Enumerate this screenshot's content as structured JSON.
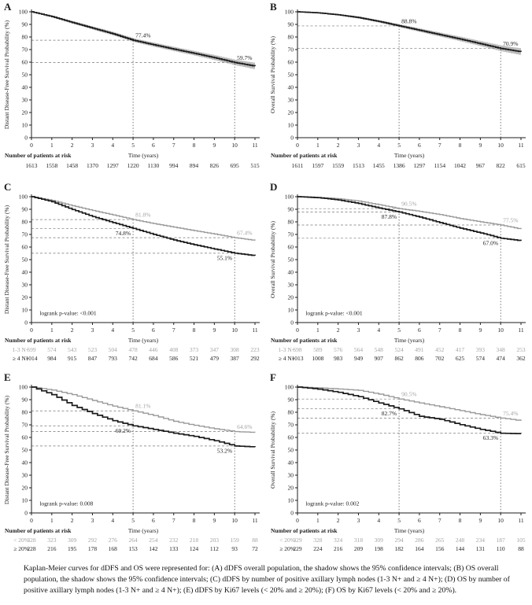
{
  "figure": {
    "caption": "Kaplan-Meier curves for dDFS and OS were represented for: (A) dDFS overall population, the shadow shows the 95% confidence intervals; (B) OS overall population, the shadow shows the 95% confidence intervals; (C) dDFS by number of positive axillary lymph nodes (1-3 N+ and ≥ 4 N+); (D) OS by number of positive axillary lymph nodes (1-3 N+ and ≥ 4 N+); (E) dDFS by Ki67 levels (< 20% and ≥ 20%); (F) OS by Ki67 levels (< 20% and ≥ 20%).",
    "risk_header": "Number of patients at risk",
    "time_axis_label": "Time (years)",
    "colors": {
      "black_series": "#1c1c1c",
      "gray_series": "#9a9a9a",
      "ci_band": "#bdbdbd",
      "ref_line": "#777777",
      "gray_text": "#a3a3a3"
    }
  },
  "chart_data": [
    {
      "letter": "A",
      "type": "line",
      "ylabel": "Distant Disease-Free Survival Probability (%)",
      "xlabel": "Time (years)",
      "xlim": [
        0,
        11
      ],
      "ylim": [
        0,
        100
      ],
      "x": [
        0,
        1,
        2,
        3,
        4,
        5,
        6,
        7,
        8,
        9,
        10,
        11
      ],
      "series": [
        {
          "name": "Overall population dDFS",
          "color": "black",
          "values": [
            100,
            96.2,
            91.5,
            87,
            82.5,
            77.4,
            73.8,
            70.3,
            67,
            63.5,
            59.7,
            56.8
          ],
          "ci_halfwidth": [
            0.3,
            0.7,
            1.0,
            1.2,
            1.4,
            1.5,
            1.6,
            1.7,
            1.8,
            2.0,
            2.2,
            2.6
          ]
        }
      ],
      "annotations": [
        {
          "text": "77.4%",
          "x": 5,
          "y": 77.4,
          "color": "black",
          "placement": "above-right"
        },
        {
          "text": "59.7%",
          "x": 10,
          "y": 59.7,
          "color": "black",
          "placement": "above-right"
        }
      ],
      "logrank_pvalue": "",
      "risk_rows": [
        {
          "label": "",
          "color": "black",
          "values": [
            1613,
            1558,
            1458,
            1370,
            1297,
            1220,
            1130,
            994,
            894,
            826,
            695,
            515
          ]
        }
      ]
    },
    {
      "letter": "B",
      "type": "line",
      "ylabel": "Overall Survival Probability (%)",
      "xlabel": "Time (years)",
      "xlim": [
        0,
        11
      ],
      "ylim": [
        0,
        100
      ],
      "x": [
        0,
        1,
        2,
        3,
        4,
        5,
        6,
        7,
        8,
        9,
        10,
        11
      ],
      "series": [
        {
          "name": "Overall population OS",
          "color": "black",
          "values": [
            100,
            99.2,
            97.6,
            95.4,
            92.3,
            88.8,
            85.3,
            81.8,
            78.3,
            74.6,
            70.9,
            68.2
          ],
          "ci_halfwidth": [
            0.2,
            0.4,
            0.6,
            0.8,
            1.0,
            1.2,
            1.4,
            1.6,
            1.8,
            2.0,
            2.3,
            2.7
          ]
        }
      ],
      "annotations": [
        {
          "text": "88.8%",
          "x": 5,
          "y": 88.8,
          "color": "black",
          "placement": "above-right"
        },
        {
          "text": "70.9%",
          "x": 10,
          "y": 70.9,
          "color": "black",
          "placement": "above-right"
        }
      ],
      "logrank_pvalue": "",
      "risk_rows": [
        {
          "label": "",
          "color": "black",
          "values": [
            1611,
            1597,
            1559,
            1513,
            1455,
            1386,
            1297,
            1154,
            1042,
            967,
            822,
            615
          ]
        }
      ]
    },
    {
      "letter": "C",
      "type": "line",
      "ylabel": "Distant Disease-Free Survival Probability (%)",
      "xlabel": "Time (years)",
      "xlim": [
        0,
        11
      ],
      "ylim": [
        0,
        100
      ],
      "x": [
        0,
        1,
        2,
        3,
        4,
        5,
        6,
        7,
        8,
        9,
        10,
        11
      ],
      "series": [
        {
          "name": "1-3 N+",
          "color": "gray",
          "values": [
            100,
            97,
            92.8,
            89,
            85.5,
            81.8,
            78.6,
            75.8,
            73,
            70.3,
            67.4,
            65.2
          ]
        },
        {
          "name": "≥ 4 N+",
          "color": "black",
          "values": [
            100,
            96,
            89.8,
            84.2,
            79.4,
            74.8,
            70,
            65.6,
            61.8,
            58.4,
            55.1,
            53.1
          ]
        }
      ],
      "annotations": [
        {
          "text": "81.8%",
          "x": 5,
          "y": 81.8,
          "color": "gray",
          "placement": "above-right"
        },
        {
          "text": "74.8%",
          "x": 5,
          "y": 74.8,
          "color": "black",
          "placement": "below-left"
        },
        {
          "text": "67.4%",
          "x": 10,
          "y": 67.4,
          "color": "gray",
          "placement": "above-right"
        },
        {
          "text": "55.1%",
          "x": 10,
          "y": 55.1,
          "color": "black",
          "placement": "below-left"
        }
      ],
      "logrank_pvalue": "logrank p-value: <0.001",
      "risk_rows": [
        {
          "label": "1-3 N+",
          "color": "gray",
          "values": [
            599,
            574,
            543,
            523,
            504,
            478,
            446,
            408,
            373,
            347,
            308,
            223
          ]
        },
        {
          "label": "≥ 4 N+",
          "color": "black",
          "values": [
            1014,
            984,
            915,
            847,
            793,
            742,
            684,
            586,
            521,
            479,
            387,
            292
          ]
        }
      ]
    },
    {
      "letter": "D",
      "type": "line",
      "ylabel": "Overall Survival Probability (%)",
      "xlabel": "Time (years)",
      "xlim": [
        0,
        11
      ],
      "ylim": [
        0,
        100
      ],
      "x": [
        0,
        1,
        2,
        3,
        4,
        5,
        6,
        7,
        8,
        9,
        10,
        11
      ],
      "series": [
        {
          "name": "1-3 N+",
          "color": "gray",
          "values": [
            100,
            99.5,
            98.4,
            96.5,
            93.6,
            90.5,
            88.3,
            85.8,
            82.6,
            80,
            77.5,
            74.2
          ]
        },
        {
          "name": "≥ 4 N+",
          "color": "black",
          "values": [
            100,
            99.2,
            97.4,
            94.6,
            91,
            87.8,
            83.8,
            79.4,
            75,
            71.2,
            67,
            65
          ]
        }
      ],
      "annotations": [
        {
          "text": "90.5%",
          "x": 5,
          "y": 90.5,
          "color": "gray",
          "placement": "above-right"
        },
        {
          "text": "87.8%",
          "x": 5,
          "y": 87.8,
          "color": "black",
          "placement": "below-left"
        },
        {
          "text": "77.5%",
          "x": 10,
          "y": 77.5,
          "color": "gray",
          "placement": "above-right"
        },
        {
          "text": "67.0%",
          "x": 10,
          "y": 67.0,
          "color": "black",
          "placement": "below-left"
        }
      ],
      "logrank_pvalue": "logrank p-value: <0.001",
      "risk_rows": [
        {
          "label": "1-3 N+",
          "color": "gray",
          "values": [
            598,
            589,
            576,
            564,
            548,
            524,
            491,
            452,
            417,
            393,
            348,
            253
          ]
        },
        {
          "label": "≥ 4 N+",
          "color": "black",
          "values": [
            1013,
            1008,
            983,
            949,
            907,
            862,
            806,
            702,
            625,
            574,
            474,
            362
          ]
        }
      ]
    },
    {
      "letter": "E",
      "type": "line",
      "ylabel": "Distant Disease-Free Survival Probability (%)",
      "xlabel": "Time (years)",
      "xlim": [
        0,
        11
      ],
      "ylim": [
        0,
        100
      ],
      "x": [
        0,
        1,
        2,
        3,
        4,
        5,
        6,
        7,
        8,
        9,
        10,
        11
      ],
      "series": [
        {
          "name": "< 20%",
          "color": "gray",
          "values": [
            100,
            97.6,
            94,
            89.4,
            84.9,
            81.1,
            77.4,
            72.8,
            69.6,
            66.9,
            64.6,
            64
          ]
        },
        {
          "name": "≥ 20%",
          "color": "black",
          "values": [
            100,
            94,
            85.4,
            79,
            73.3,
            69.2,
            66.4,
            63.4,
            60.8,
            57.4,
            53.2,
            52.4
          ]
        }
      ],
      "annotations": [
        {
          "text": "81.1%",
          "x": 5,
          "y": 81.1,
          "color": "gray",
          "placement": "above-right"
        },
        {
          "text": "69.2%",
          "x": 5,
          "y": 69.2,
          "color": "black",
          "placement": "below-left"
        },
        {
          "text": "64.6%",
          "x": 10,
          "y": 64.6,
          "color": "gray",
          "placement": "above-right"
        },
        {
          "text": "53.2%",
          "x": 10,
          "y": 53.2,
          "color": "black",
          "placement": "below-left"
        }
      ],
      "logrank_pvalue": "logrank p-value: 0.008",
      "risk_rows": [
        {
          "label": "< 20%",
          "color": "gray",
          "values": [
            328,
            323,
            309,
            292,
            276,
            264,
            254,
            232,
            218,
            203,
            159,
            88
          ]
        },
        {
          "label": "≥ 20%",
          "color": "black",
          "values": [
            228,
            216,
            195,
            178,
            168,
            153,
            142,
            133,
            124,
            112,
            93,
            72
          ]
        }
      ]
    },
    {
      "letter": "F",
      "type": "line",
      "ylabel": "Overall Survival Probability (%)",
      "xlabel": "Time (years)",
      "xlim": [
        0,
        11
      ],
      "ylim": [
        0,
        100
      ],
      "x": [
        0,
        1,
        2,
        3,
        4,
        5,
        6,
        7,
        8,
        9,
        10,
        11
      ],
      "series": [
        {
          "name": "< 20%",
          "color": "gray",
          "values": [
            100,
            99.4,
            98.5,
            97.4,
            94.4,
            90.5,
            87.4,
            84.4,
            81.3,
            78.1,
            75.4,
            73.2
          ]
        },
        {
          "name": "≥ 20%",
          "color": "black",
          "values": [
            100,
            98.4,
            95.8,
            92.4,
            87.4,
            82.7,
            76.8,
            74.4,
            70.1,
            66.4,
            63.3,
            63
          ]
        }
      ],
      "annotations": [
        {
          "text": "90.5%",
          "x": 5,
          "y": 90.5,
          "color": "gray",
          "placement": "above-right"
        },
        {
          "text": "82.7%",
          "x": 5,
          "y": 82.7,
          "color": "black",
          "placement": "below-left"
        },
        {
          "text": "75.4%",
          "x": 10,
          "y": 75.4,
          "color": "gray",
          "placement": "above-right"
        },
        {
          "text": "63.3%",
          "x": 10,
          "y": 63.3,
          "color": "black",
          "placement": "below-left"
        }
      ],
      "logrank_pvalue": "logrank p-value: 0.002",
      "risk_rows": [
        {
          "label": "< 20%",
          "color": "gray",
          "values": [
            329,
            328,
            324,
            318,
            309,
            294,
            286,
            265,
            248,
            234,
            187,
            105
          ]
        },
        {
          "label": "≥ 20%",
          "color": "black",
          "values": [
            229,
            224,
            216,
            209,
            198,
            182,
            164,
            156,
            144,
            131,
            110,
            88
          ]
        }
      ]
    }
  ]
}
